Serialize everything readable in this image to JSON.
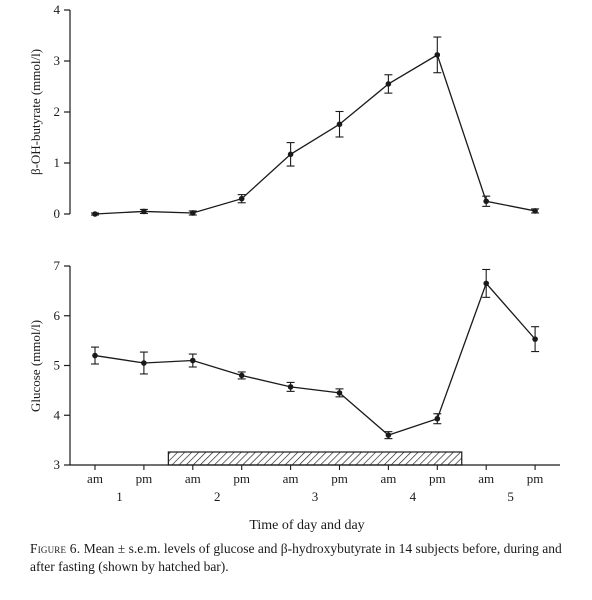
{
  "chart_data": [
    {
      "type": "line",
      "ylabel": "β-OH-butyrate (mmol/l)",
      "ylim": [
        0,
        4
      ],
      "yticks": [
        0,
        1,
        2,
        3,
        4
      ],
      "categories": [
        "am",
        "pm",
        "am",
        "pm",
        "am",
        "pm",
        "am",
        "pm",
        "am",
        "pm"
      ],
      "series": [
        {
          "values": [
            0.0,
            0.05,
            0.02,
            0.3,
            1.17,
            1.76,
            2.55,
            3.12,
            0.25,
            0.06
          ],
          "errors": [
            0.02,
            0.04,
            0.04,
            0.08,
            0.23,
            0.25,
            0.18,
            0.35,
            0.1,
            0.04
          ]
        }
      ],
      "grid": false
    },
    {
      "type": "line",
      "ylabel": "Glucose (mmol/l)",
      "ylim": [
        3,
        7
      ],
      "yticks": [
        3,
        4,
        5,
        6,
        7
      ],
      "categories": [
        "am",
        "pm",
        "am",
        "pm",
        "am",
        "pm",
        "am",
        "pm",
        "am",
        "pm"
      ],
      "day_labels": [
        "1",
        "2",
        "3",
        "4",
        "5"
      ],
      "xlabel": "Time of day and day",
      "fasting_bar": {
        "from_index": 1.5,
        "to_index": 7.5,
        "pattern": "hatched"
      },
      "series": [
        {
          "values": [
            5.2,
            5.05,
            5.1,
            4.8,
            4.57,
            4.45,
            3.6,
            3.93,
            6.65,
            5.53
          ],
          "errors": [
            0.17,
            0.22,
            0.13,
            0.07,
            0.09,
            0.08,
            0.07,
            0.1,
            0.28,
            0.25
          ]
        }
      ],
      "grid": false
    }
  ],
  "caption": {
    "head": "Figure 6.",
    "text": " Mean ± s.e.m. levels of glucose and β-hydroxybutyrate in 14 subjects before, during and after fasting (shown by hatched bar)."
  }
}
